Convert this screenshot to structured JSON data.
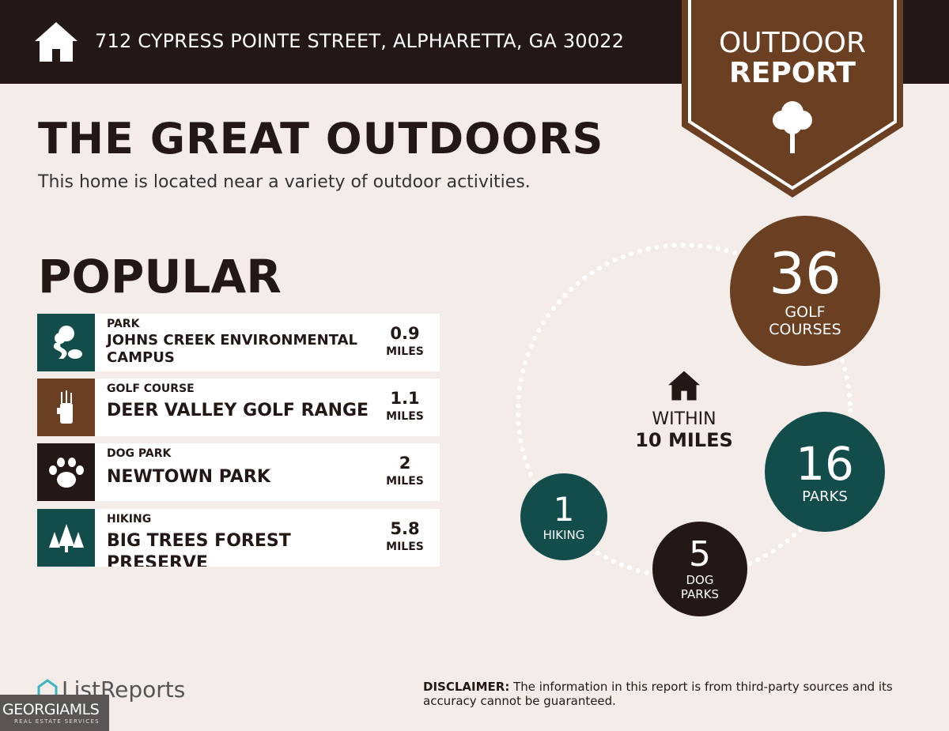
{
  "header": {
    "address": "712 CYPRESS POINTE STREET, ALPHARETTA, GA 30022",
    "icon": "home-icon"
  },
  "badge": {
    "line1": "OUTDOOR",
    "line2": "REPORT",
    "icon": "tree-icon"
  },
  "title": "THE GREAT OUTDOORS",
  "subtitle": "This home is located near a variety of outdoor activities.",
  "popular": {
    "heading": "POPULAR",
    "items": [
      {
        "category": "PARK",
        "name": "JOHNS CREEK ENVIRONMENTAL CAMPUS",
        "distance": "0.9",
        "unit": "MILES",
        "icon": "park-icon",
        "color": "#124d4c"
      },
      {
        "category": "GOLF COURSE",
        "name": "DEER VALLEY GOLF RANGE",
        "distance": "1.1",
        "unit": "MILES",
        "icon": "golf-bag-icon",
        "color": "#6b3f22"
      },
      {
        "category": "DOG PARK",
        "name": "NEWTOWN PARK",
        "distance": "2",
        "unit": "MILES",
        "icon": "paw-icon",
        "color": "#231815"
      },
      {
        "category": "HIKING",
        "name": "BIG TREES FOREST PRESERVE",
        "distance": "5.8",
        "unit": "MILES",
        "icon": "pine-trees-icon",
        "color": "#124d4c"
      }
    ]
  },
  "summary": {
    "within_label": "WITHIN",
    "radius": "10 MILES",
    "counts": [
      {
        "count": "36",
        "label": "GOLF COURSES",
        "color": "#6b3f22"
      },
      {
        "count": "16",
        "label": "PARKS",
        "color": "#124d4c"
      },
      {
        "count": "5",
        "label": "DOG PARKS",
        "color": "#231815"
      },
      {
        "count": "1",
        "label": "HIKING",
        "color": "#124d4c"
      }
    ]
  },
  "footer": {
    "brand": "ListReports",
    "mls_logo": "GEORGIAMLS",
    "mls_tagline": "REAL ESTATE SERVICES",
    "disclaimer_label": "DISCLAIMER:",
    "disclaimer_text": " The information in this report is from third-party sources and its accuracy cannot be guaranteed."
  }
}
